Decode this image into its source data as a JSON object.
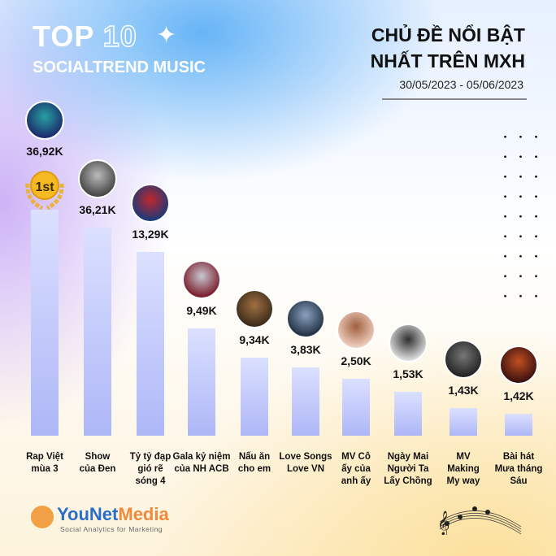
{
  "header": {
    "top_label": "TOP",
    "top_number": "10",
    "subtitle": "SOCIALTREND MUSIC",
    "title_line1": "CHỦ ĐỀ NỔI BẬT",
    "title_line2": "NHẤT TRÊN MXH",
    "date_range": "30/05/2023 - 05/06/2023"
  },
  "medal_text": "1st",
  "chart_data": {
    "type": "bar",
    "title": "CHỦ ĐỀ NỔI BẬT NHẤT TRÊN MXH",
    "categories": [
      "Rap Việt\nmùa 3",
      "Show\ncủa Đen",
      "Tỷ tỷ đạp\ngió rẽ\nsóng 4",
      "Gala kỷ niệm\ncủa NH ACB",
      "Nấu ăn\ncho em",
      "Love Songs\nLove VN",
      "MV Cô\nấy của\nanh ấy",
      "Ngày Mai\nNgười Ta\nLấy Chồng",
      "MV\nMaking\nMy way",
      "Bài hát\nMưa tháng\nSáu"
    ],
    "values": [
      36.92,
      36.21,
      13.29,
      9.49,
      9.34,
      3.83,
      2.5,
      1.53,
      1.43,
      1.42
    ],
    "value_labels": [
      "36,92K",
      "36,21K",
      "13,29K",
      "9,49K",
      "9,34K",
      "3,83K",
      "2,50K",
      "1,53K",
      "1,43K",
      "1,42K"
    ],
    "unit": "K",
    "bar_color": "#b3bcf8",
    "grid": false
  },
  "footer": {
    "brand_a": "YouNet",
    "brand_b": "Media",
    "tagline": "Social Analytics for Marketing"
  },
  "colors": {
    "brand_blue": "#2a6ec9",
    "brand_orange": "#f08a3a",
    "medal": "#f5b921"
  }
}
